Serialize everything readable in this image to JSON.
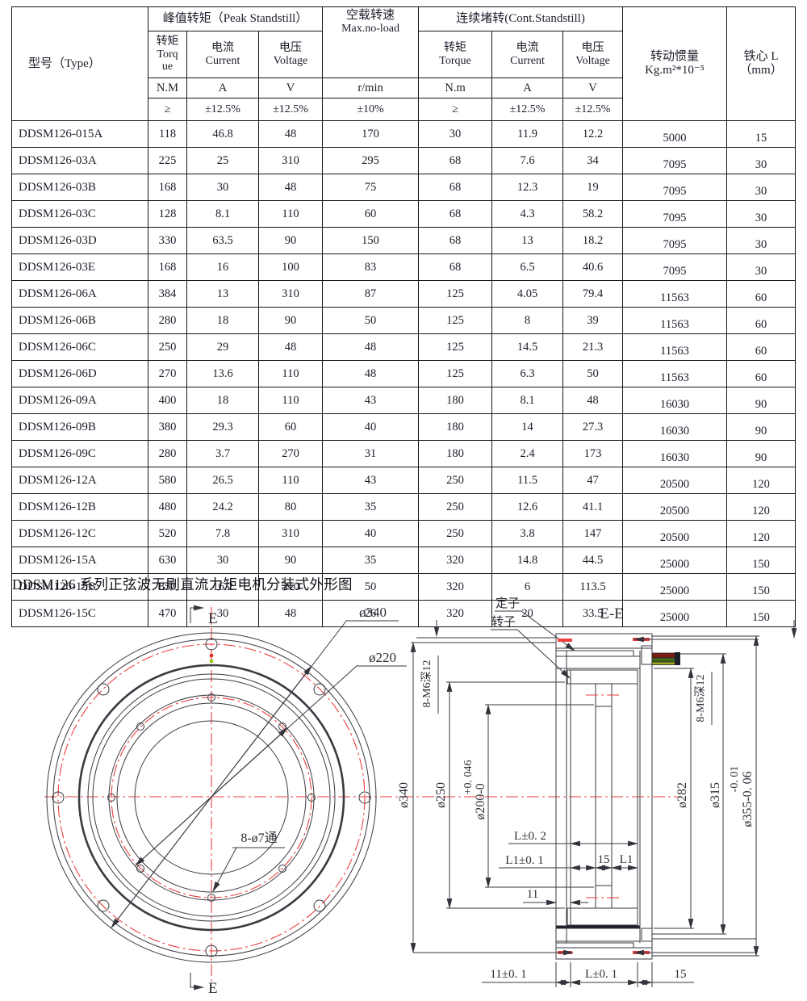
{
  "page": {
    "caption": "DDSM126 系列正弦波无刷直流力矩电机分装式外形图"
  },
  "colors": {
    "table_border": "#161616",
    "text": "#1d1d2b",
    "centerline_red": "#ee3f3f",
    "hatch_cyan": "#00d6d6",
    "solid_cyan": "#00e0e0",
    "cable_maroon": "#7a1d12",
    "cable_green": "#3f6b1a",
    "cable_yellow": "#9aa81e"
  },
  "table": {
    "col_headers": {
      "type": "型号（Type）",
      "peak_group": "峰值转矩（Peak Standstill）",
      "noload_line1": "空载转速",
      "noload_line2": "Max.no-load",
      "cont_group": "连续堵转(Cont.Standstill)",
      "inertia_line1": "转动惯量",
      "inertia_line2": "Kg.m²*10⁻⁵",
      "core_line1": "铁心 L",
      "core_line2": "（mm）",
      "peak_cols": [
        {
          "cn": "转矩",
          "en1": "Torq",
          "en2": "ue",
          "unit": "N.M",
          "tol": "≥"
        },
        {
          "cn": "电流",
          "en1": "Current",
          "en2": "",
          "unit": "A",
          "tol": "±12.5%"
        },
        {
          "cn": "电压",
          "en1": "Voltage",
          "en2": "",
          "unit": "V",
          "tol": "±12.5%"
        }
      ],
      "noload_unit": "r/min",
      "noload_tol": "±10%",
      "cont_cols": [
        {
          "cn": "转矩",
          "en1": "Torque",
          "en2": "",
          "unit": "N.m",
          "tol": "≥"
        },
        {
          "cn": "电流",
          "en1": "Current",
          "en2": "",
          "unit": "A",
          "tol": "±12.5%"
        },
        {
          "cn": "电压",
          "en1": "Voltage",
          "en2": "",
          "unit": "V",
          "tol": "±12.5%"
        }
      ]
    },
    "rows": [
      [
        "DDSM126-015A",
        "118",
        "46.8",
        "48",
        "170",
        "30",
        "11.9",
        "12.2",
        "5000",
        "15"
      ],
      [
        "DDSM126-03A",
        "225",
        "25",
        "310",
        "295",
        "68",
        "7.6",
        "34",
        "7095",
        "30"
      ],
      [
        "DDSM126-03B",
        "168",
        "30",
        "48",
        "75",
        "68",
        "12.3",
        "19",
        "7095",
        "30"
      ],
      [
        "DDSM126-03C",
        "128",
        "8.1",
        "110",
        "60",
        "68",
        "4.3",
        "58.2",
        "7095",
        "30"
      ],
      [
        "DDSM126-03D",
        "330",
        "63.5",
        "90",
        "150",
        "68",
        "13",
        "18.2",
        "7095",
        "30"
      ],
      [
        "DDSM126-03E",
        "168",
        "16",
        "100",
        "83",
        "68",
        "6.5",
        "40.6",
        "7095",
        "30"
      ],
      [
        "DDSM126-06A",
        "384",
        "13",
        "310",
        "87",
        "125",
        "4.05",
        "79.4",
        "11563",
        "60"
      ],
      [
        "DDSM126-06B",
        "280",
        "18",
        "90",
        "50",
        "125",
        "8",
        "39",
        "11563",
        "60"
      ],
      [
        "DDSM126-06C",
        "250",
        "29",
        "48",
        "48",
        "125",
        "14.5",
        "21.3",
        "11563",
        "60"
      ],
      [
        "DDSM126-06D",
        "270",
        "13.6",
        "110",
        "48",
        "125",
        "6.3",
        "50",
        "11563",
        "60"
      ],
      [
        "DDSM126-09A",
        "400",
        "18",
        "110",
        "43",
        "180",
        "8.1",
        "48",
        "16030",
        "90"
      ],
      [
        "DDSM126-09B",
        "380",
        "29.3",
        "60",
        "40",
        "180",
        "14",
        "27.3",
        "16030",
        "90"
      ],
      [
        "DDSM126-09C",
        "280",
        "3.7",
        "270",
        "31",
        "180",
        "2.4",
        "173",
        "16030",
        "90"
      ],
      [
        "DDSM126-12A",
        "580",
        "26.5",
        "110",
        "43",
        "250",
        "11.5",
        "47",
        "20500",
        "120"
      ],
      [
        "DDSM126-12B",
        "480",
        "24.2",
        "80",
        "35",
        "250",
        "12.6",
        "41.1",
        "20500",
        "120"
      ],
      [
        "DDSM126-12C",
        "520",
        "7.8",
        "310",
        "40",
        "250",
        "3.8",
        "147",
        "20500",
        "120"
      ],
      [
        "DDSM126-15A",
        "630",
        "30",
        "90",
        "35",
        "320",
        "14.8",
        "44.5",
        "25000",
        "150"
      ],
      [
        "DDSM126-15B",
        "850",
        "16.2",
        "310",
        "50",
        "320",
        "6",
        "113.5",
        "25000",
        "150"
      ],
      [
        "DDSM126-15C",
        "470",
        "30",
        "48",
        "26",
        "320",
        "20",
        "33.5",
        "25000",
        "150"
      ]
    ]
  },
  "drawing": {
    "front": {
      "section_mark_top": "E",
      "section_mark_bottom": "E",
      "dim_outer": "ø340",
      "dim_inner": "ø220",
      "holes_note": "8-ø7通"
    },
    "section": {
      "title": "E-E",
      "stator_label": "定子",
      "rotor_label": "转子",
      "thread_note": "8-M6深12",
      "dim_340": "ø340",
      "dim_250": "ø250",
      "dim_200_tol": "+0. 046",
      "dim_200": "ø200-0",
      "dim_282": "ø282",
      "dim_315": "ø315",
      "dim_355_tol": "-0. 01",
      "dim_355": "ø355-0. 06",
      "dim_L02": "L±0. 2",
      "dim_L101": "L1±0. 1",
      "dim_15_mid": "15",
      "dim_L1": "L1",
      "dim_11": "11",
      "dim_1101": "11±0. 1",
      "dim_L01": "L±0. 1",
      "dim_15_bottom": "15"
    }
  }
}
